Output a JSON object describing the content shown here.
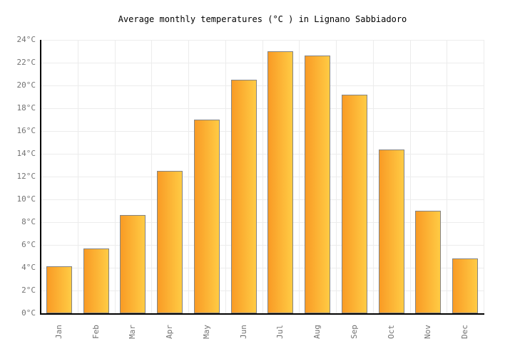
{
  "title": "Average monthly temperatures (°C ) in Lignano Sabbiadoro",
  "chart_data": {
    "type": "bar",
    "title": "Average monthly temperatures (°C ) in Lignano Sabbiadoro",
    "categories": [
      "Jan",
      "Feb",
      "Mar",
      "Apr",
      "May",
      "Jun",
      "Jul",
      "Aug",
      "Sep",
      "Oct",
      "Nov",
      "Dec"
    ],
    "values": [
      4.1,
      5.7,
      8.6,
      12.5,
      17.0,
      20.5,
      23.0,
      22.6,
      19.2,
      14.4,
      9.0,
      4.8
    ],
    "xlabel": "",
    "ylabel": "",
    "ylim": [
      0,
      24
    ],
    "ytick_step": 2,
    "ytick_suffix": "°C",
    "grid": true,
    "legend": "none",
    "colors": {
      "bar_gradient_left": "#f99b25",
      "bar_gradient_right": "#ffcb44",
      "bar_border": "#848484",
      "axis": "#000000",
      "grid": "#ececec",
      "tick_label": "#737373",
      "title": "#000000",
      "background": "#ffffff"
    }
  }
}
